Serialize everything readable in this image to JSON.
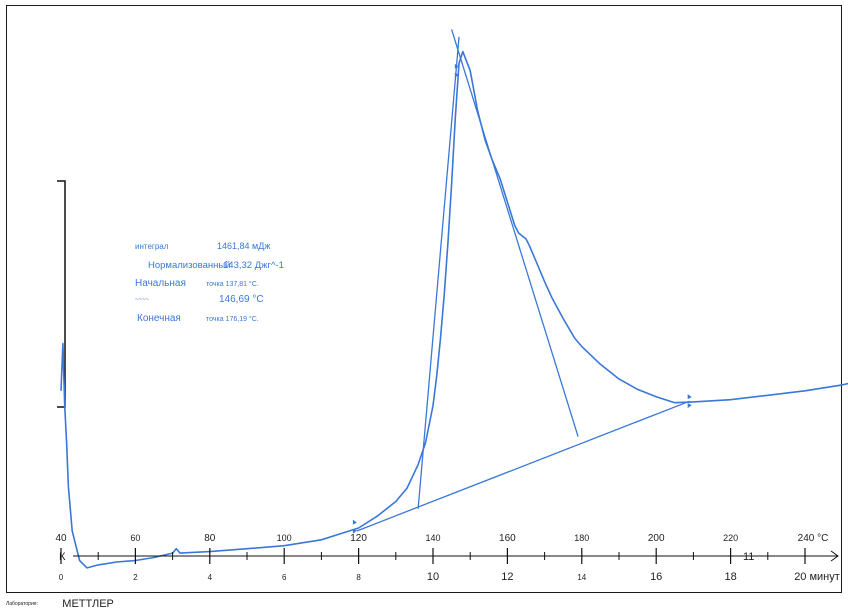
{
  "chart_data": {
    "type": "line",
    "integral_label": "интеграл",
    "integral_value": "1461,84 мДж",
    "normalized_label": "Нормализованный",
    "normalized_value": "143,32 Джг^-1",
    "onset_label": "Начальная",
    "onset_value": "точка 137,81 °С.",
    "peak_label": "~~~~",
    "peak_value": "146,69 °С",
    "endset_label": "Конечная",
    "endset_value": "точка 176,19 °С.",
    "temp_ticks": [
      "40",
      "60",
      "80",
      "100",
      "120",
      "140",
      "160",
      "180",
      "200",
      "220",
      "240 °С"
    ],
    "time_ticks": [
      "0",
      "2",
      "4",
      "6",
      "8",
      "10",
      "12",
      "14",
      "16",
      "18",
      "20 минут"
    ],
    "axis_left_label": "К",
    "axis_extra_label": "11",
    "xlim_temp": [
      40,
      240
    ],
    "curve_temp": [
      40,
      40.5,
      41,
      41.5,
      42,
      43,
      45,
      47,
      50,
      55,
      60,
      65,
      70,
      71,
      72,
      80,
      90,
      100,
      110,
      115,
      120,
      125,
      130,
      133,
      136,
      138,
      140,
      141,
      142,
      143,
      144,
      145,
      146,
      147,
      148,
      150,
      152,
      154,
      156,
      158,
      160,
      162,
      163,
      164,
      165,
      166,
      168,
      170,
      172,
      175,
      178,
      180,
      185,
      190,
      195,
      200,
      205,
      210,
      220,
      230,
      240,
      250,
      260,
      265
    ],
    "curve_value": [
      40,
      72,
      30,
      5,
      -25,
      -55,
      -75,
      -80,
      -78,
      -76,
      -75,
      -73,
      -70,
      -67,
      -70,
      -69,
      -67,
      -65,
      -61,
      -57,
      -53,
      -45,
      -35,
      -26,
      -10,
      5,
      30,
      50,
      75,
      105,
      140,
      180,
      225,
      262,
      270,
      257,
      230,
      210,
      196,
      184,
      168,
      152,
      147,
      145,
      143,
      138,
      126,
      114,
      103,
      89,
      76,
      70,
      58,
      48,
      41,
      36,
      32,
      32.5,
      34,
      37,
      40,
      44,
      50,
      55
    ],
    "baseline_temp": [
      119.5,
      209
    ],
    "baseline_value": [
      -55,
      33
    ],
    "leading_tangent_temp": [
      136,
      147
    ],
    "leading_tangent_value": [
      -40,
      280
    ],
    "trailing_tangent_temp": [
      145,
      179
    ],
    "trailing_tangent_value": [
      285,
      9
    ],
    "markers_temp": [
      119,
      146.4,
      209
    ],
    "markers_value": [
      -52,
      257,
      33
    ],
    "ylim": [
      -95,
      288
    ]
  },
  "footer": {
    "label": "Лаборатория:",
    "brand": "МЕТТЛЕР"
  }
}
